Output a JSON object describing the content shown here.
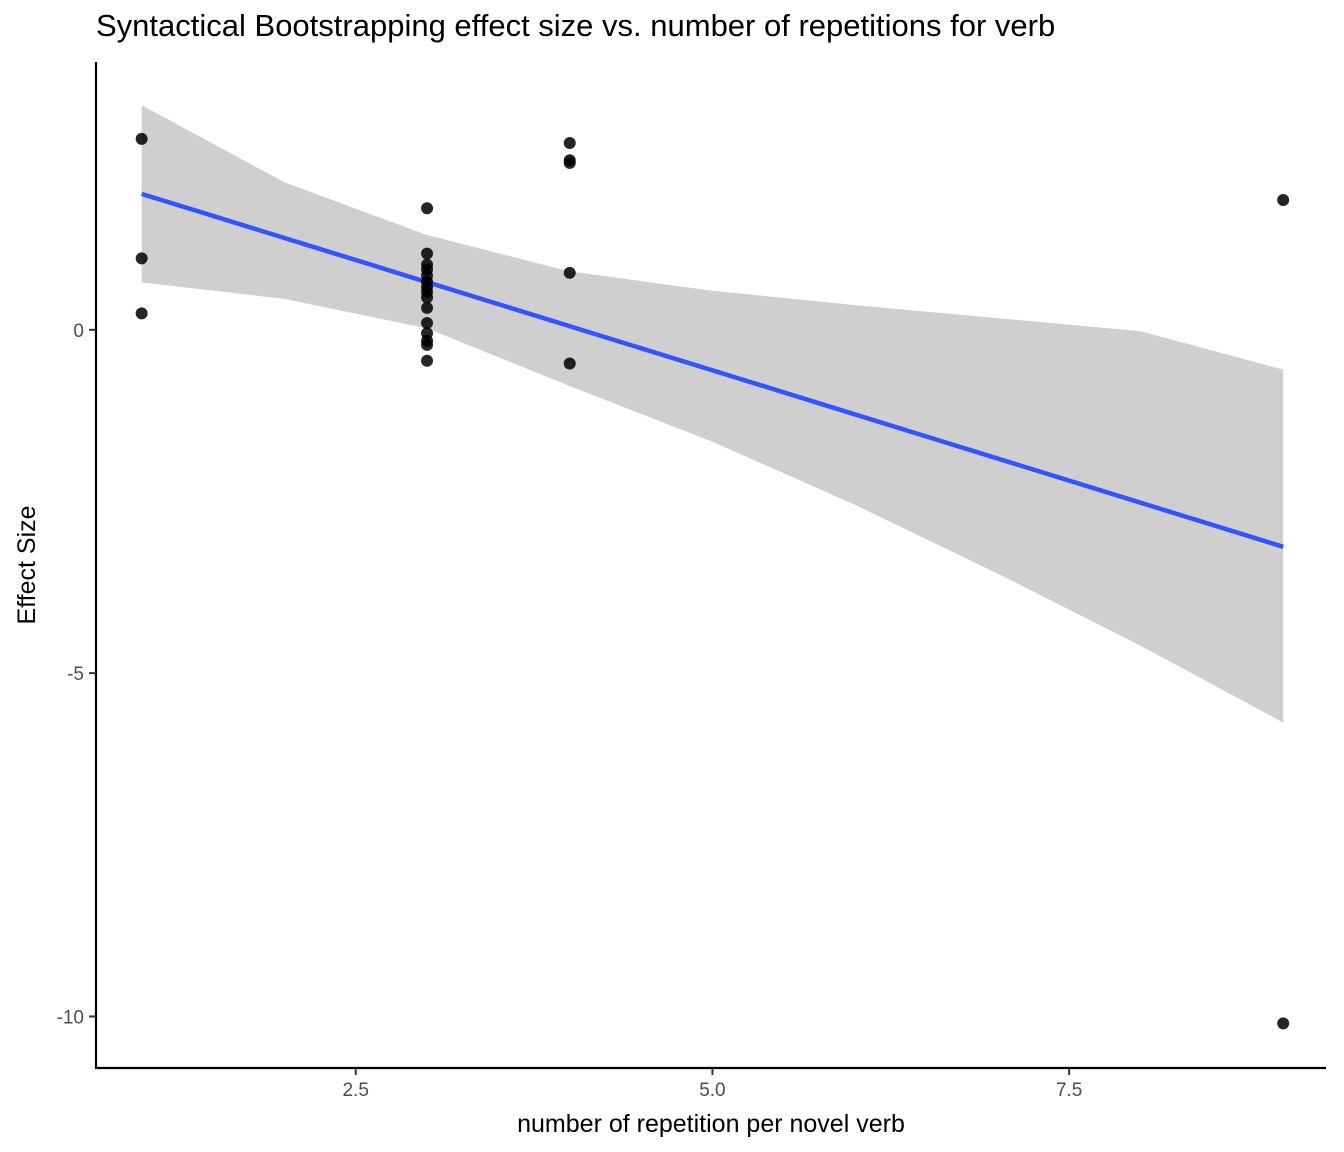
{
  "chart_data": {
    "type": "scatter",
    "title": "Syntactical Bootstrapping effect size vs. number of repetitions for verb",
    "xlabel": "number of repetition per novel verb",
    "ylabel": "Effect Size",
    "xlim": [
      0.68,
      9.3
    ],
    "ylim": [
      -10.75,
      3.9
    ],
    "x_ticks": [
      2.5,
      5.0,
      7.5
    ],
    "x_tick_labels": [
      "2.5",
      "5.0",
      "7.5"
    ],
    "y_ticks": [
      0,
      -5,
      -10
    ],
    "y_tick_labels": [
      "0",
      "-5",
      "-10"
    ],
    "grid": false,
    "legend": "none",
    "points": [
      {
        "x": 1,
        "y": 2.78
      },
      {
        "x": 1,
        "y": 1.04
      },
      {
        "x": 1,
        "y": 0.24
      },
      {
        "x": 3,
        "y": 1.77
      },
      {
        "x": 3,
        "y": 1.11
      },
      {
        "x": 3,
        "y": 0.95
      },
      {
        "x": 3,
        "y": 0.88
      },
      {
        "x": 3,
        "y": 0.79
      },
      {
        "x": 3,
        "y": 0.7
      },
      {
        "x": 3,
        "y": 0.62
      },
      {
        "x": 3,
        "y": 0.55
      },
      {
        "x": 3,
        "y": 0.47
      },
      {
        "x": 3,
        "y": 0.32
      },
      {
        "x": 3,
        "y": 0.1
      },
      {
        "x": 3,
        "y": -0.05
      },
      {
        "x": 3,
        "y": -0.16
      },
      {
        "x": 3,
        "y": -0.22
      },
      {
        "x": 3,
        "y": -0.45
      },
      {
        "x": 4,
        "y": 2.72
      },
      {
        "x": 4,
        "y": 2.47
      },
      {
        "x": 4,
        "y": 2.43
      },
      {
        "x": 4,
        "y": 0.83
      },
      {
        "x": 4,
        "y": -0.49
      },
      {
        "x": 9,
        "y": 1.89
      },
      {
        "x": 9,
        "y": -10.1
      }
    ],
    "fit_line": {
      "x": [
        1,
        9
      ],
      "y": [
        1.98,
        -3.16
      ]
    },
    "confidence_band": {
      "x": [
        1,
        2,
        3,
        4,
        5,
        6,
        7,
        8,
        9
      ],
      "upper": [
        3.27,
        2.15,
        1.38,
        0.85,
        0.57,
        0.36,
        0.17,
        -0.02,
        -0.58
      ],
      "lower": [
        0.69,
        0.45,
        0.02,
        -0.82,
        -1.63,
        -2.55,
        -3.55,
        -4.6,
        -5.72
      ]
    },
    "colors": {
      "points": "#000000",
      "fit_line": "#3353ff",
      "band": "#cfcfcf",
      "axis": "#000000"
    }
  }
}
